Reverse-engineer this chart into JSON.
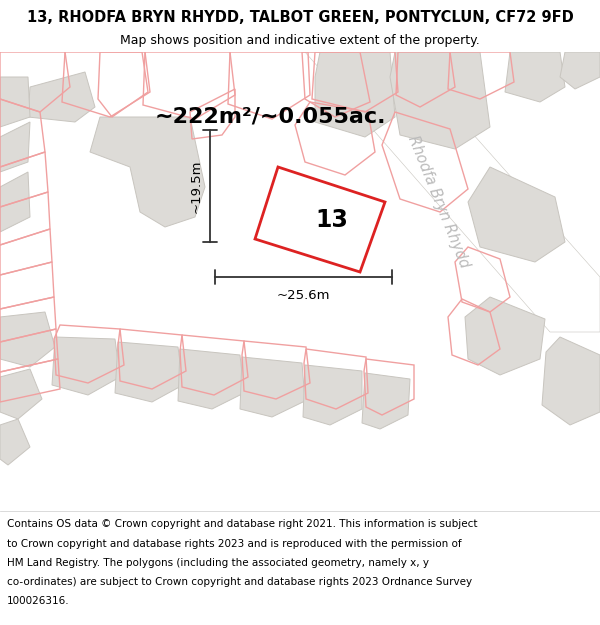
{
  "title_line1": "13, RHODFA BRYN RHYDD, TALBOT GREEN, PONTYCLUN, CF72 9FD",
  "title_line2": "Map shows position and indicative extent of the property.",
  "area_text": "~222m²/~0.055ac.",
  "label_13": "13",
  "dim_width": "~25.6m",
  "dim_height": "~19.5m",
  "street_label": "Rhodfa Bryn Rhydd",
  "footer_lines": [
    "Contains OS data © Crown copyright and database right 2021. This information is subject",
    "to Crown copyright and database rights 2023 and is reproduced with the permission of",
    "HM Land Registry. The polygons (including the associated geometry, namely x, y",
    "co-ordinates) are subject to Crown copyright and database rights 2023 Ordnance Survey",
    "100026316."
  ],
  "map_bg": "#f2f0ed",
  "building_fill": "#dddbd7",
  "building_edge": "#c8c5bf",
  "road_fill": "#ffffff",
  "parcel_color": "#f0a0a0",
  "highlight_fill": "#ffffff",
  "highlight_stroke": "#dd2222",
  "dim_color": "#333333",
  "street_color": "#bbbbbb",
  "title_fontsize": 10.5,
  "subtitle_fontsize": 9,
  "area_fontsize": 16,
  "label_fontsize": 17,
  "dim_fontsize": 9.5,
  "street_fontsize": 10.5,
  "footer_fontsize": 7.5
}
